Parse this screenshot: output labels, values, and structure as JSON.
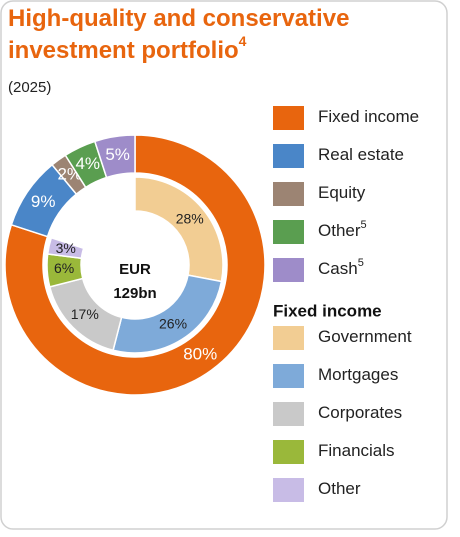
{
  "chart_data": {
    "type": "donut",
    "title": "High-quality and conservative investment portfolio",
    "title_note": "4",
    "subtitle": "(2025)",
    "center_label": [
      "EUR",
      "129bn"
    ],
    "rings": [
      {
        "categories": [
          "Fixed income",
          "Real estate",
          "Equity",
          "Other",
          "Cash"
        ],
        "notes": [
          null,
          null,
          null,
          "5",
          "5"
        ],
        "values": [
          80,
          9,
          2,
          4,
          5
        ],
        "value_labels": [
          "80%",
          "9%",
          "2%",
          "4%",
          "5%"
        ],
        "colors": [
          "#e8650e",
          "#4a86c8",
          "#9c8473",
          "#5a9e50",
          "#9e8cc9"
        ]
      },
      {
        "title": "Fixed income",
        "categories": [
          "Government",
          "Mortgages",
          "Corporates",
          "Financials",
          "Other"
        ],
        "values": [
          28,
          26,
          17,
          6,
          3
        ],
        "value_labels": [
          "28%",
          "26%",
          "17%",
          "6%",
          "3%"
        ],
        "colors": [
          "#f2cd93",
          "#7eaad9",
          "#c9c9c9",
          "#9ab83a",
          "#c8bce6"
        ]
      }
    ]
  }
}
